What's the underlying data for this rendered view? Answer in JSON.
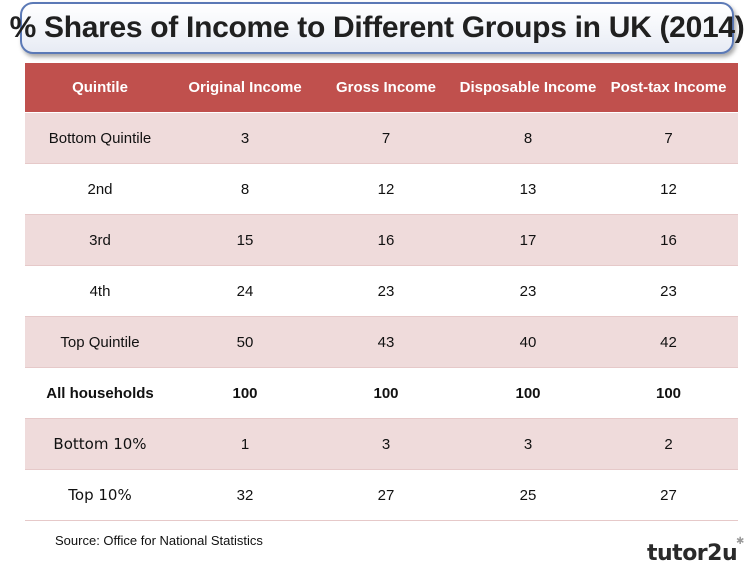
{
  "title": "% Shares of Income to Different Groups in UK (2014)",
  "source": "Source: Office for National Statistics",
  "brand": "tutor2u",
  "colors": {
    "header": "#c0504d",
    "band": "#efdbdb",
    "title_border": "#5b79b6"
  },
  "chart_data": {
    "type": "table",
    "title": "% Shares of Income to Different Groups in UK (2014)",
    "columns": [
      "Quintile",
      "Original Income",
      "Gross Income",
      "Disposable Income",
      "Post-tax Income"
    ],
    "rows": [
      [
        "Bottom Quintile",
        "3",
        "7",
        "8",
        "7"
      ],
      [
        "2nd",
        "8",
        "12",
        "13",
        "12"
      ],
      [
        "3rd",
        "15",
        "16",
        "17",
        "16"
      ],
      [
        "4th",
        "24",
        "23",
        "23",
        "23"
      ],
      [
        "Top Quintile",
        "50",
        "43",
        "40",
        "42"
      ],
      [
        "All households",
        "100",
        "100",
        "100",
        "100"
      ],
      [
        "Bottom 10%",
        "1",
        "3",
        "3",
        "2"
      ],
      [
        "Top 10%",
        "32",
        "27",
        "25",
        "27"
      ]
    ]
  }
}
